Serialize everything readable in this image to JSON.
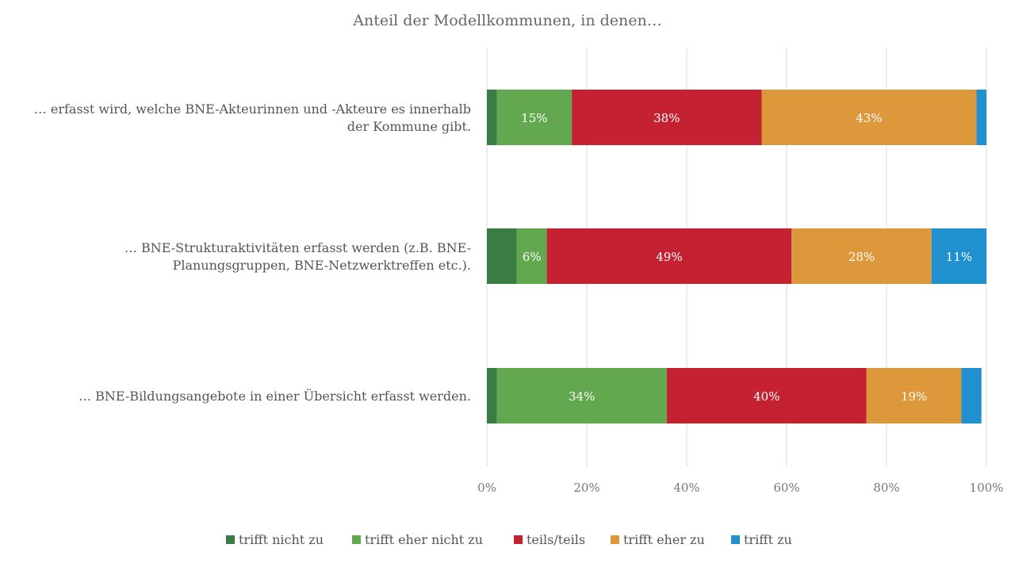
{
  "chart_data": {
    "type": "bar",
    "orientation": "horizontal",
    "stacked": true,
    "title": "Anteil der Modellkommunen, in denen…",
    "categories": [
      [
        "… erfasst wird, welche BNE-Akteurinnen und -Akteure es innerhalb",
        "der Kommune gibt."
      ],
      [
        "… BNE-Strukturaktivitäten erfasst werden (z.B. BNE-",
        "Planungsgruppen, BNE-Netzwerktreffen etc.)."
      ],
      [
        "… BNE-Bildungsangebote in einer Übersicht erfasst werden."
      ]
    ],
    "series": [
      {
        "name": "trifft nicht zu",
        "color": "#3a7d44",
        "values": [
          2,
          6,
          2
        ]
      },
      {
        "name": "trifft eher nicht zu",
        "color": "#62a84e",
        "values": [
          15,
          6,
          34
        ]
      },
      {
        "name": "teils/teils",
        "color": "#c42233",
        "values": [
          38,
          49,
          40
        ]
      },
      {
        "name": "trifft eher zu",
        "color": "#de983c",
        "values": [
          43,
          28,
          19
        ]
      },
      {
        "name": "trifft zu",
        "color": "#2090cf",
        "values": [
          2,
          11,
          4
        ]
      }
    ],
    "data_labels": [
      [
        null,
        "15%",
        "38%",
        "43%",
        null
      ],
      [
        null,
        "6%",
        "49%",
        "28%",
        "11%"
      ],
      [
        null,
        "34%",
        "40%",
        "19%",
        null
      ]
    ],
    "xlim": [
      0,
      100
    ],
    "xticks": [
      "0%",
      "20%",
      "40%",
      "60%",
      "80%",
      "100%"
    ],
    "grid": true,
    "legend_position": "bottom"
  }
}
